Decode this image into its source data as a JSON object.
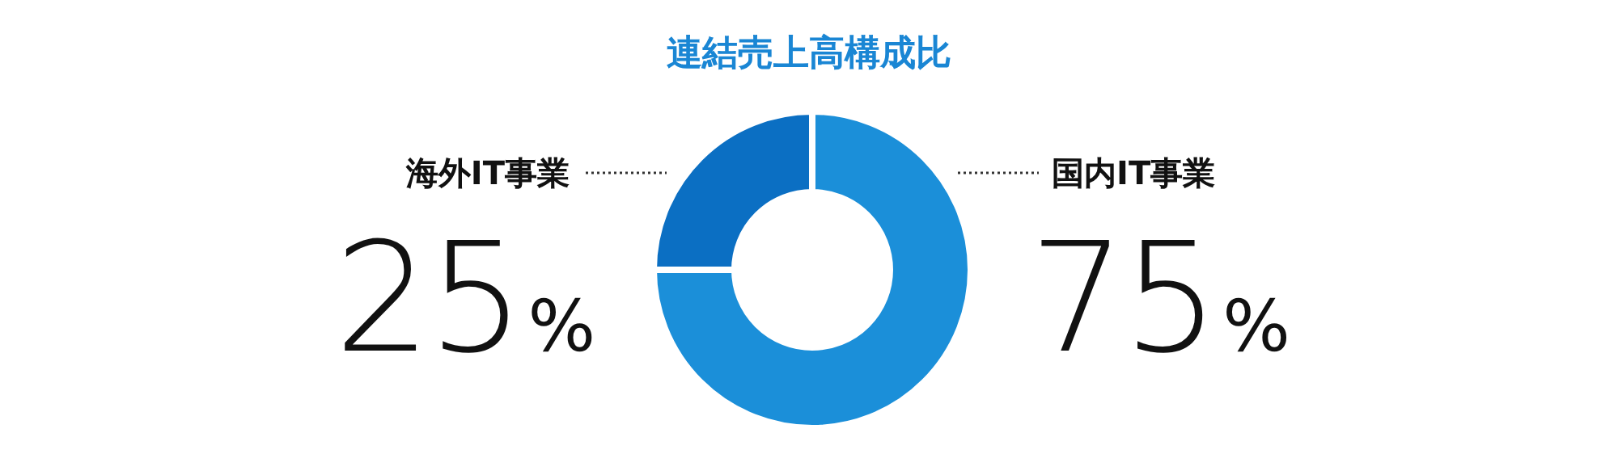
{
  "chart_data": {
    "type": "donut",
    "title": "連結売上高構成比",
    "categories": [
      "国内IT事業",
      "海外IT事業"
    ],
    "values": [
      75,
      25
    ],
    "colors": [
      "#1b8fd9",
      "#0b6fc3"
    ],
    "value_labels": [
      "75%",
      "25%"
    ]
  }
}
